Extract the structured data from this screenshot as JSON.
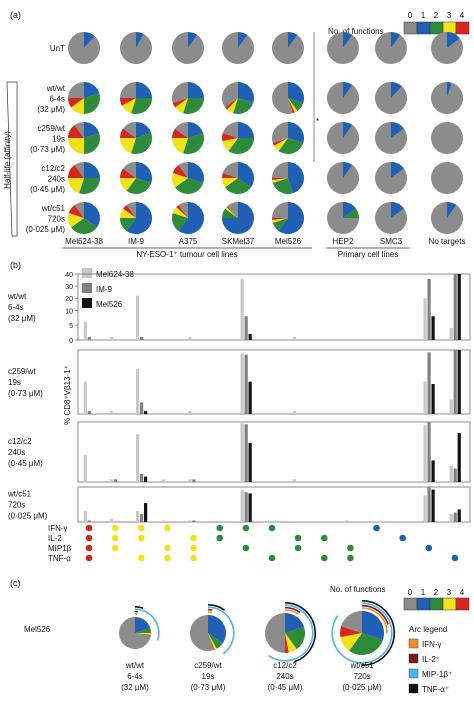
{
  "panels": {
    "a": {
      "label": "(a)",
      "legend_title": "No. of functions",
      "legend_levels": [
        "0",
        "1",
        "2",
        "3",
        "4"
      ],
      "legend_colors": [
        "#8c8c8c",
        "#1f5fb4",
        "#2e8b3a",
        "#f1e21b",
        "#d7261e"
      ]
    },
    "b": {
      "label": "(b)"
    },
    "c": {
      "label": "(c)",
      "legend_title": "No. of functions",
      "legend_levels": [
        "0",
        "1",
        "2",
        "3",
        "4"
      ]
    }
  },
  "chart_data": [
    {
      "type": "pie",
      "panel": "a",
      "rows": [
        {
          "label": [
            "UnT"
          ]
        },
        {
          "label": [
            "wt/wt",
            "6-4s",
            "(32 μM)"
          ]
        },
        {
          "label": [
            "c259/wt",
            "19s",
            "(0·73 μM)"
          ]
        },
        {
          "label": [
            "c12/c2",
            "240s",
            "(0·45 μM)"
          ]
        },
        {
          "label": [
            "wt/c51",
            "720s",
            "(0·025 μM)"
          ]
        }
      ],
      "columns": [
        "Mel624-38",
        "IM-9",
        "A375",
        "SKMel37",
        "Mel526",
        "HEP2",
        "SMC3",
        "No targets"
      ],
      "group_labels": [
        "NY-ESO-1⁺ tumour cell lines",
        "Primary cell lines"
      ],
      "side_label": "Half-life (affinity)",
      "side_mark": "*",
      "slice_colors": [
        "#8c8c8c",
        "#1f5fb4",
        "#2e8b3a",
        "#f1e21b",
        "#d7261e"
      ],
      "fractions": [
        [
          [
            0.88,
            0.12,
            0,
            0,
            0
          ],
          [
            0.92,
            0.08,
            0,
            0,
            0
          ],
          [
            0.9,
            0.1,
            0,
            0,
            0
          ],
          [
            0.9,
            0.1,
            0,
            0,
            0
          ],
          [
            0.9,
            0.1,
            0,
            0,
            0
          ],
          [
            0.9,
            0.1,
            0,
            0,
            0
          ],
          [
            0.9,
            0.1,
            0,
            0,
            0
          ],
          [
            0.85,
            0.15,
            0,
            0,
            0
          ]
        ],
        [
          [
            0.25,
            0.2,
            0.3,
            0.15,
            0.1
          ],
          [
            0.25,
            0.25,
            0.3,
            0.12,
            0.08
          ],
          [
            0.3,
            0.25,
            0.3,
            0.1,
            0.05
          ],
          [
            0.35,
            0.3,
            0.25,
            0.07,
            0.03
          ],
          [
            0.55,
            0.3,
            0.1,
            0.03,
            0.02
          ],
          [
            0.9,
            0.1,
            0,
            0,
            0
          ],
          [
            0.88,
            0.12,
            0,
            0,
            0
          ],
          [
            0.95,
            0.05,
            0,
            0,
            0
          ]
        ],
        [
          [
            0.1,
            0.2,
            0.3,
            0.25,
            0.15
          ],
          [
            0.15,
            0.2,
            0.35,
            0.2,
            0.1
          ],
          [
            0.15,
            0.2,
            0.35,
            0.2,
            0.1
          ],
          [
            0.2,
            0.25,
            0.35,
            0.12,
            0.08
          ],
          [
            0.3,
            0.3,
            0.3,
            0.07,
            0.03
          ],
          [
            0.9,
            0.1,
            0,
            0,
            0
          ],
          [
            0.85,
            0.15,
            0,
            0,
            0
          ],
          [
            1,
            0,
            0,
            0,
            0
          ]
        ],
        [
          [
            0.1,
            0.25,
            0.3,
            0.2,
            0.15
          ],
          [
            0.15,
            0.3,
            0.3,
            0.15,
            0.1
          ],
          [
            0.1,
            0.3,
            0.35,
            0.15,
            0.1
          ],
          [
            0.2,
            0.35,
            0.3,
            0.1,
            0.05
          ],
          [
            0.25,
            0.45,
            0.25,
            0.03,
            0.02
          ],
          [
            0.9,
            0.1,
            0,
            0,
            0
          ],
          [
            0.85,
            0.15,
            0,
            0,
            0
          ],
          [
            1,
            0,
            0,
            0,
            0
          ]
        ],
        [
          [
            0.1,
            0.35,
            0.3,
            0.15,
            0.1
          ],
          [
            0.1,
            0.6,
            0.15,
            0.1,
            0.05
          ],
          [
            0.1,
            0.6,
            0.2,
            0.07,
            0.03
          ],
          [
            0.12,
            0.75,
            0.1,
            0.02,
            0.01
          ],
          [
            0.25,
            0.6,
            0.1,
            0.03,
            0.02
          ],
          [
            0.75,
            0.15,
            0.1,
            0,
            0
          ],
          [
            0.85,
            0.15,
            0,
            0,
            0
          ],
          [
            0.9,
            0.1,
            0,
            0,
            0
          ]
        ]
      ]
    },
    {
      "type": "bar",
      "panel": "b",
      "ylabel": "% CD8⁺Vβ13·1⁺",
      "y_ticks": [
        0,
        5,
        10,
        20,
        30,
        40
      ],
      "series": [
        {
          "name": "Mel624-38",
          "color": "#c8c8c8"
        },
        {
          "name": "IM-9",
          "color": "#808080"
        },
        {
          "name": "Mel526",
          "color": "#111111"
        }
      ],
      "rows": [
        {
          "label": [
            "wt/wt",
            "6-4s",
            "(32 μM)"
          ]
        },
        {
          "label": [
            "c259/wt",
            "19s",
            "(0·73 μM)"
          ]
        },
        {
          "label": [
            "c12/c2",
            "240s",
            "(0·45 μM)"
          ]
        },
        {
          "label": [
            "wt/c51",
            "720s",
            "(0·025 μM)"
          ]
        }
      ],
      "function_labels": [
        "IFN-γ",
        "IL-2",
        "MIP1β",
        "TNF-α"
      ],
      "combo_colors": [
        "#c8281e",
        "#f1e21b",
        "#2e8b3a",
        "#1f5fb4"
      ],
      "combos": [
        {
          "n": 4,
          "present": [
            1,
            1,
            1,
            1
          ]
        },
        {
          "n": 3,
          "present": [
            1,
            1,
            1,
            0
          ]
        },
        {
          "n": 3,
          "present": [
            1,
            1,
            0,
            1
          ]
        },
        {
          "n": 3,
          "present": [
            1,
            0,
            1,
            1
          ]
        },
        {
          "n": 3,
          "present": [
            0,
            1,
            1,
            1
          ]
        },
        {
          "n": 2,
          "present": [
            1,
            1,
            0,
            0
          ]
        },
        {
          "n": 2,
          "present": [
            1,
            0,
            1,
            0
          ]
        },
        {
          "n": 2,
          "present": [
            1,
            0,
            0,
            1
          ]
        },
        {
          "n": 2,
          "present": [
            0,
            1,
            1,
            0
          ]
        },
        {
          "n": 2,
          "present": [
            0,
            1,
            0,
            1
          ]
        },
        {
          "n": 2,
          "present": [
            0,
            0,
            1,
            1
          ]
        },
        {
          "n": 1,
          "present": [
            1,
            0,
            0,
            0
          ]
        },
        {
          "n": 1,
          "present": [
            0,
            1,
            0,
            0
          ]
        },
        {
          "n": 1,
          "present": [
            0,
            0,
            1,
            0
          ]
        },
        {
          "n": 1,
          "present": [
            0,
            0,
            0,
            1
          ]
        }
      ],
      "values": [
        [
          [
            6,
            1,
            0
          ],
          [
            1,
            0,
            0
          ],
          [
            22,
            1,
            0
          ],
          [
            0,
            0,
            0
          ],
          [
            1,
            0,
            0
          ],
          [
            0,
            0,
            0
          ],
          [
            36,
            8,
            2
          ],
          [
            0,
            0,
            0
          ],
          [
            1,
            0,
            0
          ],
          [
            0,
            0,
            0
          ],
          [
            0,
            0,
            0
          ],
          [
            0,
            0,
            0
          ],
          [
            0,
            0,
            0
          ],
          [
            20,
            36,
            8
          ],
          [
            4,
            45,
            80
          ]
        ],
        [
          [
            13,
            1,
            0
          ],
          [
            1,
            0,
            0
          ],
          [
            24,
            4,
            1
          ],
          [
            0,
            0,
            0
          ],
          [
            1,
            0,
            0
          ],
          [
            0,
            0,
            0
          ],
          [
            37,
            36,
            13
          ],
          [
            0,
            0,
            0
          ],
          [
            1,
            0,
            0
          ],
          [
            0,
            0,
            0
          ],
          [
            0,
            0,
            0
          ],
          [
            0,
            0,
            0
          ],
          [
            0,
            0,
            0
          ],
          [
            13,
            38,
            11
          ],
          [
            5,
            55,
            80
          ]
        ],
        [
          [
            10,
            0,
            0
          ],
          [
            1,
            1,
            0
          ],
          [
            29,
            3,
            2
          ],
          [
            1,
            0,
            0
          ],
          [
            1,
            1,
            0
          ],
          [
            0,
            0,
            0
          ],
          [
            39,
            38,
            21
          ],
          [
            0,
            0,
            0
          ],
          [
            1,
            0,
            0
          ],
          [
            0,
            0,
            0
          ],
          [
            0,
            0,
            0
          ],
          [
            0,
            0,
            0
          ],
          [
            0,
            0,
            0
          ],
          [
            37,
            40,
            8
          ],
          [
            6,
            5,
            30
          ]
        ],
        [
          [
            7,
            1,
            0
          ],
          [
            2,
            0,
            0
          ],
          [
            7,
            5,
            15
          ],
          [
            1,
            0,
            0
          ],
          [
            1,
            1,
            0
          ],
          [
            0,
            0,
            0
          ],
          [
            35,
            32,
            30
          ],
          [
            0,
            0,
            0
          ],
          [
            0,
            0,
            0
          ],
          [
            0,
            0,
            0
          ],
          [
            1,
            0,
            0
          ],
          [
            0,
            0,
            0
          ],
          [
            0,
            0,
            0
          ],
          [
            27,
            41,
            36
          ],
          [
            5,
            6,
            8
          ]
        ]
      ]
    },
    {
      "type": "pie",
      "panel": "c",
      "row_label": "Mel526",
      "items": [
        {
          "label": [
            "wt/wt",
            "6-4s",
            "(32 μM)"
          ],
          "fractions": [
            0.72,
            0.2,
            0.05,
            0.02,
            0.01
          ],
          "arcs": {
            "IFN-γ": 0.02,
            "IL-2": 0.02,
            "MIP-1β⁺": 0.3,
            "TNF-α⁺": 0.05
          }
        },
        {
          "label": [
            "c259/wt",
            "19s",
            "(0·73 μM)"
          ],
          "fractions": [
            0.55,
            0.35,
            0.07,
            0.02,
            0.01
          ],
          "arcs": {
            "IFN-γ": 0.03,
            "IL-2": 0.03,
            "MIP-1β⁺": 0.4,
            "TNF-α⁺": 0.1
          }
        },
        {
          "label": [
            "c12/c2",
            "240s",
            "(0·45 μM)"
          ],
          "fractions": [
            0.5,
            0.2,
            0.2,
            0.07,
            0.03
          ],
          "arcs": {
            "IFN-γ": 0.1,
            "IL-2": 0.1,
            "MIP-1β⁺": 0.6,
            "TNF-α⁺": 0.45
          }
        },
        {
          "label": [
            "wt/c51",
            "720s",
            "(0·025 μM)"
          ],
          "fractions": [
            0.2,
            0.3,
            0.3,
            0.12,
            0.08
          ],
          "arcs": {
            "IFN-γ": 0.25,
            "IL-2": 0.2,
            "MIP-1β⁺": 0.85,
            "TNF-α⁺": 0.5
          }
        }
      ],
      "arc_legend_title": "Arc legend",
      "arc_legend": [
        {
          "name": "IFN-γ",
          "color": "#f28c28"
        },
        {
          "name": "IL-2⁺",
          "color": "#7a1a1a"
        },
        {
          "name": "MIP-1β⁺",
          "color": "#4fb3e8"
        },
        {
          "name": "TNF-α⁺",
          "color": "#111111"
        }
      ],
      "slice_colors": [
        "#8c8c8c",
        "#1f5fb4",
        "#2e8b3a",
        "#f1e21b",
        "#d7261e"
      ]
    }
  ]
}
